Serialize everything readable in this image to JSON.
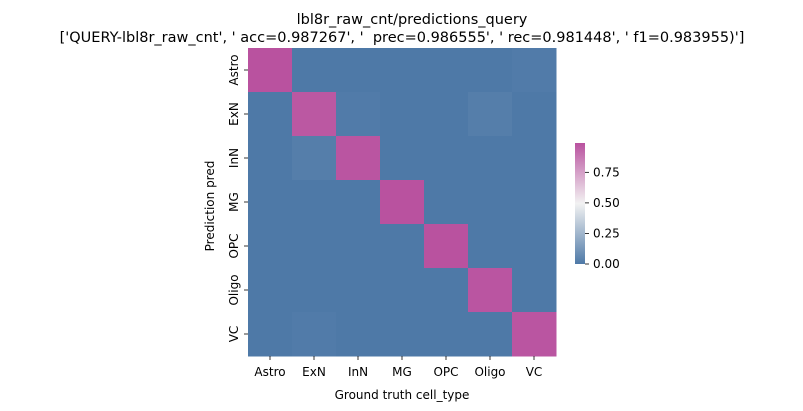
{
  "chart_data": {
    "type": "heatmap",
    "title": "lbl8r_raw_cnt/predictions_query",
    "subtitle": "['QUERY-lbl8r_raw_cnt', ' acc=0.987267', '  prec=0.986555', ' rec=0.981448', ' f1=0.983955)']",
    "xlabel": "Ground truth cell_type",
    "ylabel": "Prediction pred",
    "x_categories": [
      "Astro",
      "ExN",
      "InN",
      "MG",
      "OPC",
      "Oligo",
      "VC"
    ],
    "y_categories": [
      "Astro",
      "ExN",
      "InN",
      "MG",
      "OPC",
      "Oligo",
      "VC"
    ],
    "values": [
      [
        0.99,
        0.0,
        0.0,
        0.0,
        0.0,
        0.0,
        0.01
      ],
      [
        0.0,
        0.97,
        0.01,
        0.0,
        0.0,
        0.02,
        0.0
      ],
      [
        0.0,
        0.02,
        0.98,
        0.0,
        0.0,
        0.0,
        0.0
      ],
      [
        0.0,
        0.0,
        0.0,
        0.99,
        0.0,
        0.0,
        0.0
      ],
      [
        0.0,
        0.0,
        0.0,
        0.0,
        0.99,
        0.0,
        0.0
      ],
      [
        0.0,
        0.0,
        0.0,
        0.0,
        0.0,
        0.98,
        0.0
      ],
      [
        0.0,
        0.01,
        0.0,
        0.0,
        0.0,
        0.0,
        0.98
      ]
    ],
    "vmin": 0.0,
    "vmax": 0.99,
    "colorbar": {
      "ticks": [
        0.0,
        0.25,
        0.5,
        0.75
      ],
      "tick_labels": [
        "0.00",
        "0.25",
        "0.50",
        "0.75"
      ]
    },
    "colors": {
      "low": "#4e79a7",
      "mid": "#f2f2f2",
      "high": "#b9529f"
    },
    "grid": false
  }
}
